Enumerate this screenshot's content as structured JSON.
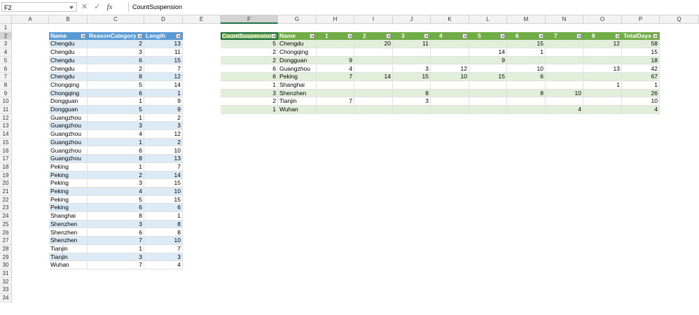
{
  "formula_bar": {
    "name_box": "F2",
    "formula": "CountSuspension",
    "icons": [
      "cancel-icon",
      "enter-icon",
      "function-icon"
    ],
    "fx": "fx"
  },
  "columns": [
    "A",
    "B",
    "C",
    "D",
    "E",
    "F",
    "G",
    "H",
    "I",
    "J",
    "K",
    "L",
    "M",
    "N",
    "O",
    "P",
    "Q"
  ],
  "rows": [
    "1",
    "2",
    "3",
    "4",
    "5",
    "6",
    "7",
    "8",
    "9",
    "10",
    "11",
    "12",
    "13",
    "14",
    "15",
    "16",
    "17",
    "18",
    "19",
    "20",
    "21",
    "22",
    "23",
    "24",
    "25",
    "26",
    "27",
    "28",
    "29",
    "30",
    "31",
    "32",
    "33",
    "34"
  ],
  "colors": {
    "blue_header": "#5b9bd5",
    "blue_band": "#ddebf7",
    "green_header": "#70ad47",
    "green_band": "#e2efda",
    "selection": "#217346"
  },
  "source_table": {
    "headers": [
      "Name",
      "ReasonCategory",
      "Length"
    ],
    "rows": [
      [
        "Chengdu",
        "2",
        "13"
      ],
      [
        "Chengdu",
        "3",
        "11"
      ],
      [
        "Chengdu",
        "6",
        "15"
      ],
      [
        "Chengdu",
        "2",
        "7"
      ],
      [
        "Chengdu",
        "8",
        "12"
      ],
      [
        "Chongqing",
        "5",
        "14"
      ],
      [
        "Chongqing",
        "6",
        "1"
      ],
      [
        "Dongguan",
        "1",
        "9"
      ],
      [
        "Dongguan",
        "5",
        "9"
      ],
      [
        "Guangzhou",
        "1",
        "2"
      ],
      [
        "Guangzhou",
        "3",
        "3"
      ],
      [
        "Guangzhou",
        "4",
        "12"
      ],
      [
        "Guangzhou",
        "1",
        "2"
      ],
      [
        "Guangzhou",
        "6",
        "10"
      ],
      [
        "Guangzhou",
        "8",
        "13"
      ],
      [
        "Peking",
        "1",
        "7"
      ],
      [
        "Peking",
        "2",
        "14"
      ],
      [
        "Peking",
        "3",
        "15"
      ],
      [
        "Peking",
        "4",
        "10"
      ],
      [
        "Peking",
        "5",
        "15"
      ],
      [
        "Peking",
        "6",
        "6"
      ],
      [
        "Shanghai",
        "8",
        "1"
      ],
      [
        "Shenzhen",
        "3",
        "8"
      ],
      [
        "Shenzhen",
        "6",
        "8"
      ],
      [
        "Shenzhen",
        "7",
        "10"
      ],
      [
        "Tianjin",
        "1",
        "7"
      ],
      [
        "Tianjin",
        "3",
        "3"
      ],
      [
        "Wuhan",
        "7",
        "4"
      ]
    ]
  },
  "pivot_table": {
    "headers": [
      "CountSuspension",
      "Name",
      "1",
      "2",
      "3",
      "4",
      "5",
      "6",
      "7",
      "8",
      "TotalDays"
    ],
    "rows": [
      [
        "5",
        "Chengdu",
        "",
        "20",
        "11",
        "",
        "",
        "15",
        "",
        "12",
        "58"
      ],
      [
        "2",
        "Chongqing",
        "",
        "",
        "",
        "",
        "14",
        "1",
        "",
        "",
        "15"
      ],
      [
        "2",
        "Dongguan",
        "9",
        "",
        "",
        "",
        "9",
        "",
        "",
        "",
        "18"
      ],
      [
        "6",
        "Guangzhou",
        "4",
        "",
        "3",
        "12",
        "",
        "10",
        "",
        "13",
        "42"
      ],
      [
        "6",
        "Peking",
        "7",
        "14",
        "15",
        "10",
        "15",
        "6",
        "",
        "",
        "67"
      ],
      [
        "1",
        "Shanghai",
        "",
        "",
        "",
        "",
        "",
        "",
        "",
        "1",
        "1"
      ],
      [
        "3",
        "Shenzhen",
        "",
        "",
        "8",
        "",
        "",
        "8",
        "10",
        "",
        "26"
      ],
      [
        "2",
        "Tianjin",
        "7",
        "",
        "3",
        "",
        "",
        "",
        "",
        "",
        "10"
      ],
      [
        "1",
        "Wuhan",
        "",
        "",
        "",
        "",
        "",
        "",
        "4",
        "",
        "4"
      ]
    ]
  }
}
